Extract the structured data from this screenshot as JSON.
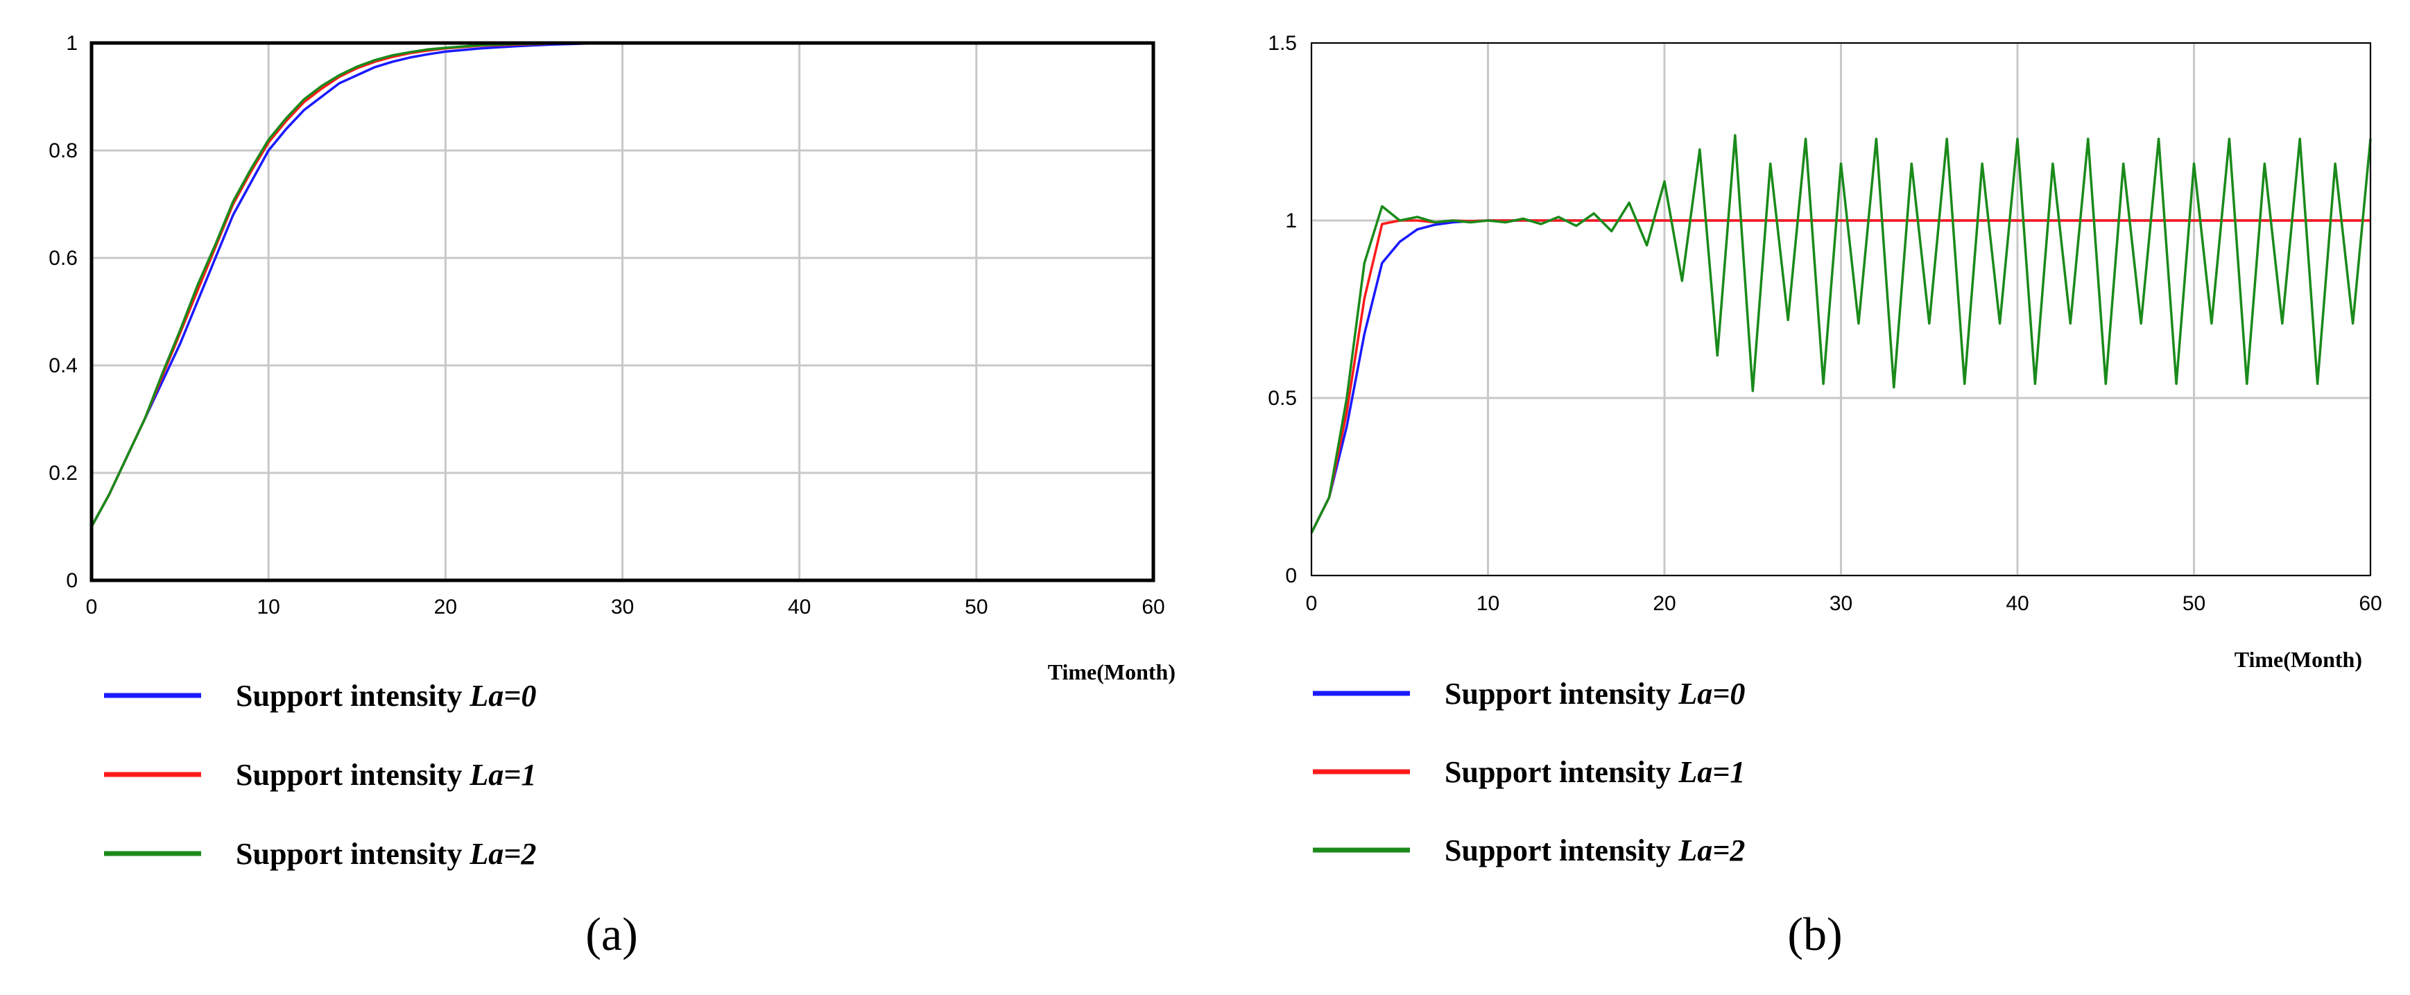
{
  "chart_data": [
    {
      "type": "line",
      "caption": "(a)",
      "xlabel": "Time(Month)",
      "xlim": [
        0,
        60
      ],
      "ylim": [
        0,
        1
      ],
      "xticks": [
        0,
        10,
        20,
        30,
        40,
        50,
        60
      ],
      "yticks": [
        0,
        0.2,
        0.4,
        0.6,
        0.8,
        1
      ],
      "grid": true,
      "legend_position": "below-left",
      "series": [
        {
          "name": "Support intensity ",
          "name_italic": "La=0",
          "color": "#1a1aff",
          "x": [
            0,
            1,
            2,
            3,
            4,
            5,
            6,
            7,
            8,
            9,
            10,
            11,
            12,
            13,
            14,
            15,
            16,
            17,
            18,
            19,
            20,
            22,
            24,
            26,
            28,
            30,
            35,
            40,
            50,
            60
          ],
          "values": [
            0.1,
            0.16,
            0.23,
            0.3,
            0.37,
            0.44,
            0.52,
            0.6,
            0.68,
            0.74,
            0.8,
            0.84,
            0.875,
            0.9,
            0.925,
            0.94,
            0.955,
            0.965,
            0.973,
            0.979,
            0.984,
            0.99,
            0.994,
            0.997,
            0.999,
            1,
            1,
            1,
            1,
            1
          ]
        },
        {
          "name": "Support intensity ",
          "name_italic": "La=1",
          "color": "#ff1a1a",
          "x": [
            0,
            1,
            2,
            3,
            4,
            5,
            6,
            7,
            8,
            9,
            10,
            11,
            12,
            13,
            14,
            15,
            16,
            17,
            18,
            19,
            20,
            22,
            24,
            26,
            28,
            30,
            35,
            40,
            50,
            60
          ],
          "values": [
            0.1,
            0.16,
            0.23,
            0.3,
            0.38,
            0.46,
            0.54,
            0.62,
            0.7,
            0.76,
            0.815,
            0.855,
            0.89,
            0.915,
            0.937,
            0.953,
            0.965,
            0.974,
            0.981,
            0.986,
            0.99,
            0.995,
            0.997,
            0.999,
            1,
            1,
            1,
            1,
            1,
            1
          ]
        },
        {
          "name": "Support intensity ",
          "name_italic": "La=2",
          "color": "#1a8a1a",
          "x": [
            0,
            1,
            2,
            3,
            4,
            5,
            6,
            7,
            8,
            9,
            10,
            11,
            12,
            13,
            14,
            15,
            16,
            17,
            18,
            19,
            20,
            22,
            24,
            26,
            28,
            30,
            35,
            40,
            50,
            60
          ],
          "values": [
            0.1,
            0.16,
            0.23,
            0.3,
            0.385,
            0.465,
            0.55,
            0.625,
            0.705,
            0.765,
            0.82,
            0.86,
            0.895,
            0.92,
            0.94,
            0.956,
            0.968,
            0.977,
            0.983,
            0.988,
            0.991,
            0.996,
            0.998,
            0.999,
            1,
            1,
            1,
            1,
            1,
            1
          ]
        }
      ]
    },
    {
      "type": "line",
      "caption": "(b)",
      "xlabel": "Time(Month)",
      "xlim": [
        0,
        60
      ],
      "ylim": [
        0,
        1.5
      ],
      "xticks": [
        0,
        10,
        20,
        30,
        40,
        50,
        60
      ],
      "yticks": [
        0,
        0.5,
        1,
        1.5
      ],
      "grid": true,
      "legend_position": "below-left",
      "series": [
        {
          "name": "Support intensity ",
          "name_italic": "La=0",
          "color": "#1a1aff",
          "x": [
            0,
            1,
            2,
            3,
            4,
            5,
            6,
            7,
            8,
            9,
            10,
            15,
            20,
            30,
            40,
            50,
            60
          ],
          "values": [
            0.12,
            0.22,
            0.42,
            0.68,
            0.88,
            0.94,
            0.975,
            0.988,
            0.995,
            0.998,
            1,
            1,
            1,
            1,
            1,
            1,
            1
          ]
        },
        {
          "name": "Support intensity ",
          "name_italic": "La=1",
          "color": "#ff1a1a",
          "x": [
            0,
            1,
            2,
            3,
            4,
            5,
            6,
            7,
            8,
            9,
            10,
            12,
            20,
            30,
            40,
            50,
            60
          ],
          "values": [
            0.12,
            0.22,
            0.46,
            0.78,
            0.99,
            1.0,
            1.0,
            0.995,
            1.0,
            0.998,
            1,
            1,
            1,
            1,
            1,
            1,
            1
          ]
        },
        {
          "name": "Support intensity ",
          "name_italic": "La=2",
          "color": "#1a8a1a",
          "x": [
            0,
            1,
            2,
            3,
            4,
            5,
            6,
            7,
            8,
            9,
            10,
            11,
            12,
            13,
            14,
            15,
            16,
            17,
            18,
            19,
            20,
            21,
            22,
            23,
            24,
            25,
            26,
            27,
            28,
            29,
            30,
            31,
            32,
            33,
            34,
            35,
            36,
            37,
            38,
            39,
            40,
            41,
            42,
            43,
            44,
            45,
            46,
            47,
            48,
            49,
            50,
            51,
            52,
            53,
            54,
            55,
            56,
            57,
            58,
            59,
            60
          ],
          "values": [
            0.12,
            0.22,
            0.5,
            0.88,
            1.04,
            1.0,
            1.01,
            0.995,
            1.0,
            0.995,
            1.0,
            0.995,
            1.005,
            0.99,
            1.01,
            0.985,
            1.02,
            0.97,
            1.05,
            0.93,
            1.11,
            0.83,
            1.2,
            0.62,
            1.24,
            0.52,
            1.16,
            0.72,
            1.23,
            0.54,
            1.16,
            0.71,
            1.23,
            0.53,
            1.16,
            0.71,
            1.23,
            0.54,
            1.16,
            0.71,
            1.23,
            0.54,
            1.16,
            0.71,
            1.23,
            0.54,
            1.16,
            0.71,
            1.23,
            0.54,
            1.16,
            0.71,
            1.23,
            0.54,
            1.16,
            0.71,
            1.23,
            0.54,
            1.16,
            0.71,
            1.23
          ]
        }
      ]
    }
  ]
}
